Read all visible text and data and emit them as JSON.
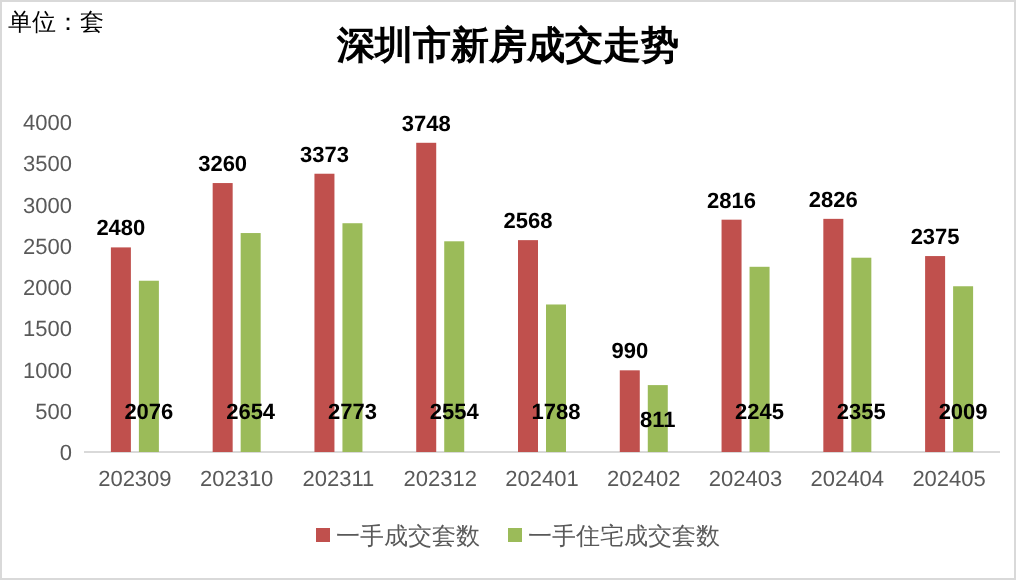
{
  "chart_data": {
    "type": "bar",
    "title": "深圳市新房成交走势",
    "annotations": [
      "单位：套"
    ],
    "categories": [
      "202309",
      "202310",
      "202311",
      "202312",
      "202401",
      "202402",
      "202403",
      "202404",
      "202405"
    ],
    "series": [
      {
        "name": "一手成交套数",
        "color": "#c0504d",
        "values": [
          2480,
          3260,
          3373,
          3748,
          2568,
          990,
          2816,
          2826,
          2375
        ]
      },
      {
        "name": "一手住宅成交套数",
        "color": "#9bbb59",
        "values": [
          2076,
          2654,
          2773,
          2554,
          1788,
          811,
          2245,
          2355,
          2009
        ]
      }
    ],
    "ylim": [
      0,
      4000
    ],
    "yticks": [
      0,
      500,
      1000,
      1500,
      2000,
      2500,
      3000,
      3500,
      4000
    ],
    "data_labels": true,
    "legend": "bottom",
    "grid": false
  }
}
